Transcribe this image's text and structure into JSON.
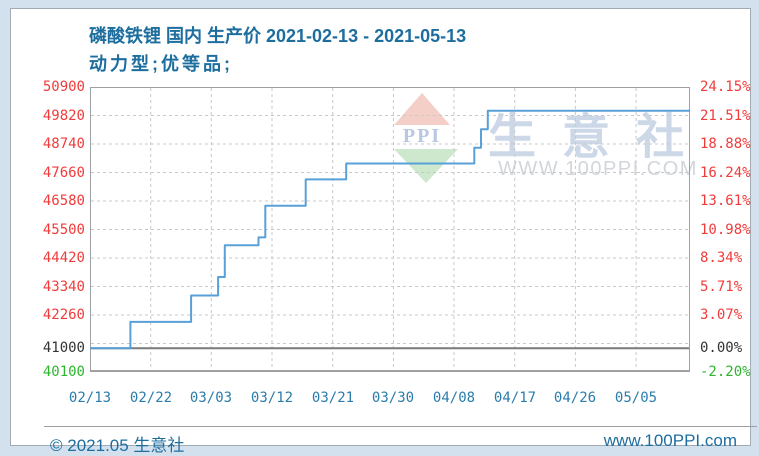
{
  "header": {
    "title": "磷酸铁锂 国内 生产价 2021-02-13 - 2021-05-13",
    "subtitle": "动力型;优等品;"
  },
  "watermark": {
    "logo_text": "PPI",
    "site_name": "生意社",
    "site_url": "WWW.100PPI.COM"
  },
  "footer": {
    "copyright": "© 2021.05 生意社",
    "website": "www.100PPI.com"
  },
  "colors": {
    "up": "#f23b3b",
    "base": "#333333",
    "down": "#2fb52f",
    "line": "#58a0d8",
    "grid": "#c9c9c9",
    "plot_border": "#a0a0a0",
    "base_line": "#7a7a7a",
    "x_label": "#2a7cab"
  },
  "chart_data": {
    "type": "line",
    "line_style": "step-after",
    "title": "磷酸铁锂 国内 生产价 2021-02-13 - 2021-05-13",
    "subtitle": "动力型;优等品;",
    "x_range": [
      "2021-02-13",
      "2021-05-13"
    ],
    "total_days": 89,
    "y_range": [
      40100,
      50900
    ],
    "grid": true,
    "legend": "none",
    "base_value": 41000,
    "gridline_values": [
      49820,
      48740,
      47660,
      46580,
      45500,
      44420,
      43340,
      42260,
      41180
    ],
    "y_ticks": [
      {
        "value": "50900",
        "pct": "24.15%",
        "num": 50900,
        "tone": "up"
      },
      {
        "value": "49820",
        "pct": "21.51%",
        "num": 49820,
        "tone": "up"
      },
      {
        "value": "48740",
        "pct": "18.88%",
        "num": 48740,
        "tone": "up"
      },
      {
        "value": "47660",
        "pct": "16.24%",
        "num": 47660,
        "tone": "up"
      },
      {
        "value": "46580",
        "pct": "13.61%",
        "num": 46580,
        "tone": "up"
      },
      {
        "value": "45500",
        "pct": "10.98%",
        "num": 45500,
        "tone": "up"
      },
      {
        "value": "44420",
        "pct": "8.34%",
        "num": 44420,
        "tone": "up"
      },
      {
        "value": "43340",
        "pct": "5.71%",
        "num": 43340,
        "tone": "up"
      },
      {
        "value": "42260",
        "pct": "3.07%",
        "num": 42260,
        "tone": "up"
      },
      {
        "value": "41000",
        "pct": "0.00%",
        "num": 41000,
        "tone": "base"
      },
      {
        "value": "40100",
        "pct": "-2.20%",
        "num": 40100,
        "tone": "down"
      }
    ],
    "x_ticks": [
      {
        "label": "02/13",
        "day": 0
      },
      {
        "label": "02/22",
        "day": 9
      },
      {
        "label": "03/03",
        "day": 18
      },
      {
        "label": "03/12",
        "day": 27
      },
      {
        "label": "03/21",
        "day": 36
      },
      {
        "label": "03/30",
        "day": 45
      },
      {
        "label": "04/08",
        "day": 54
      },
      {
        "label": "04/17",
        "day": 63
      },
      {
        "label": "04/26",
        "day": 72
      },
      {
        "label": "05/05",
        "day": 81
      }
    ],
    "series": [
      {
        "name": "生产价",
        "color": "#58a0d8",
        "points": [
          {
            "date": "2021-02-13",
            "day": 0,
            "value": 41000
          },
          {
            "date": "2021-02-19",
            "day": 6,
            "value": 42000
          },
          {
            "date": "2021-02-28",
            "day": 15,
            "value": 43000
          },
          {
            "date": "2021-03-04",
            "day": 19,
            "value": 43700
          },
          {
            "date": "2021-03-05",
            "day": 20,
            "value": 44900
          },
          {
            "date": "2021-03-10",
            "day": 25,
            "value": 45200
          },
          {
            "date": "2021-03-11",
            "day": 26,
            "value": 46400
          },
          {
            "date": "2021-03-17",
            "day": 32,
            "value": 47400
          },
          {
            "date": "2021-03-23",
            "day": 38,
            "value": 48000
          },
          {
            "date": "2021-04-11",
            "day": 57,
            "value": 48600
          },
          {
            "date": "2021-04-12",
            "day": 58,
            "value": 49300
          },
          {
            "date": "2021-04-13",
            "day": 59,
            "value": 50000
          },
          {
            "date": "2021-05-13",
            "day": 89,
            "value": 50000
          }
        ]
      }
    ]
  }
}
